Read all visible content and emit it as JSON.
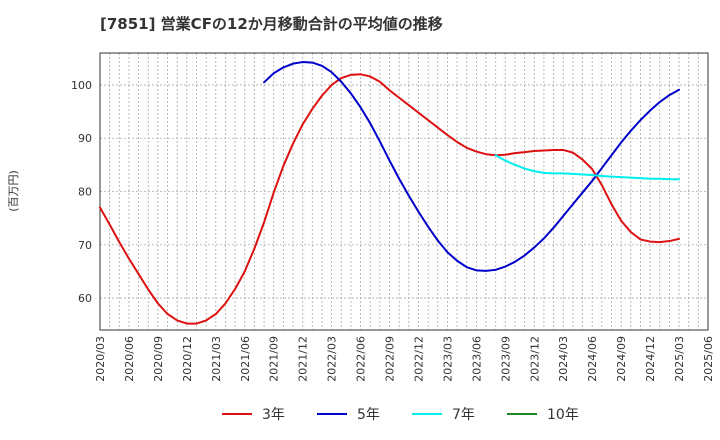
{
  "chart_data": {
    "type": "line",
    "title": "[7851]  営業CFの12か月移動合計の平均値の推移",
    "ylabel": "(百万円)",
    "xlabel": "",
    "ylim": [
      54,
      106
    ],
    "yticks": [
      60,
      70,
      80,
      90,
      100
    ],
    "x_start": "2020-03",
    "x_end": "2025-06",
    "xticks": [
      "2020/03",
      "2020/06",
      "2020/09",
      "2020/12",
      "2021/03",
      "2021/06",
      "2021/09",
      "2021/12",
      "2022/03",
      "2022/06",
      "2022/09",
      "2022/12",
      "2023/03",
      "2023/06",
      "2023/09",
      "2023/12",
      "2024/03",
      "2024/06",
      "2024/09",
      "2024/12",
      "2025/03",
      "2025/06"
    ],
    "grid": true,
    "legend_position": "bottom",
    "series": [
      {
        "name": "3年",
        "color": "#dd1111",
        "points": [
          [
            "2020-03",
            77
          ],
          [
            "2020-04",
            73.8
          ],
          [
            "2020-05",
            70.5
          ],
          [
            "2020-06",
            67.4
          ],
          [
            "2020-07",
            64.5
          ],
          [
            "2020-08",
            61.6
          ],
          [
            "2020-09",
            59
          ],
          [
            "2020-10",
            57
          ],
          [
            "2020-11",
            55.8
          ],
          [
            "2020-12",
            55.2
          ],
          [
            "2021-01",
            55.2
          ],
          [
            "2021-02",
            55.8
          ],
          [
            "2021-03",
            57
          ],
          [
            "2021-04",
            59
          ],
          [
            "2021-05",
            61.7
          ],
          [
            "2021-06",
            65
          ],
          [
            "2021-07",
            69.3
          ],
          [
            "2021-08",
            74.2
          ],
          [
            "2021-09",
            79.8
          ],
          [
            "2021-10",
            84.8
          ],
          [
            "2021-11",
            89
          ],
          [
            "2021-12",
            92.6
          ],
          [
            "2022-01",
            95.5
          ],
          [
            "2022-02",
            98
          ],
          [
            "2022-03",
            100
          ],
          [
            "2022-04",
            101.3
          ],
          [
            "2022-05",
            101.9
          ],
          [
            "2022-06",
            102
          ],
          [
            "2022-07",
            101.6
          ],
          [
            "2022-08",
            100.6
          ],
          [
            "2022-09",
            99
          ],
          [
            "2022-10",
            97.6
          ],
          [
            "2022-11",
            96.2
          ],
          [
            "2022-12",
            94.8
          ],
          [
            "2023-01",
            93.4
          ],
          [
            "2023-02",
            92
          ],
          [
            "2023-03",
            90.6
          ],
          [
            "2023-04",
            89.3
          ],
          [
            "2023-05",
            88.2
          ],
          [
            "2023-06",
            87.5
          ],
          [
            "2023-07",
            87
          ],
          [
            "2023-08",
            86.8
          ],
          [
            "2023-09",
            86.9
          ],
          [
            "2023-10",
            87.2
          ],
          [
            "2023-11",
            87.4
          ],
          [
            "2023-12",
            87.6
          ],
          [
            "2024-01",
            87.7
          ],
          [
            "2024-02",
            87.8
          ],
          [
            "2024-03",
            87.8
          ],
          [
            "2024-04",
            87.3
          ],
          [
            "2024-05",
            86
          ],
          [
            "2024-06",
            84.2
          ],
          [
            "2024-07",
            81.2
          ],
          [
            "2024-08",
            77.6
          ],
          [
            "2024-09",
            74.5
          ],
          [
            "2024-10",
            72.4
          ],
          [
            "2024-11",
            71
          ],
          [
            "2024-12",
            70.6
          ],
          [
            "2025-01",
            70.5
          ],
          [
            "2025-02",
            70.7
          ],
          [
            "2025-03",
            71.1
          ]
        ]
      },
      {
        "name": "5年",
        "color": "#0000cc",
        "points": [
          [
            "2021-08",
            100.5
          ],
          [
            "2021-09",
            102.2
          ],
          [
            "2021-10",
            103.3
          ],
          [
            "2021-11",
            104
          ],
          [
            "2021-12",
            104.3
          ],
          [
            "2022-01",
            104.2
          ],
          [
            "2022-02",
            103.6
          ],
          [
            "2022-03",
            102.4
          ],
          [
            "2022-04",
            100.6
          ],
          [
            "2022-05",
            98.4
          ],
          [
            "2022-06",
            95.8
          ],
          [
            "2022-07",
            92.8
          ],
          [
            "2022-08",
            89.4
          ],
          [
            "2022-09",
            85.8
          ],
          [
            "2022-10",
            82.4
          ],
          [
            "2022-11",
            79.2
          ],
          [
            "2022-12",
            76.2
          ],
          [
            "2023-01",
            73.4
          ],
          [
            "2023-02",
            70.8
          ],
          [
            "2023-03",
            68.6
          ],
          [
            "2023-04",
            67
          ],
          [
            "2023-05",
            65.8
          ],
          [
            "2023-06",
            65.2
          ],
          [
            "2023-07",
            65.1
          ],
          [
            "2023-08",
            65.3
          ],
          [
            "2023-09",
            65.9
          ],
          [
            "2023-10",
            66.8
          ],
          [
            "2023-11",
            68
          ],
          [
            "2023-12",
            69.5
          ],
          [
            "2024-01",
            71.2
          ],
          [
            "2024-02",
            73.2
          ],
          [
            "2024-03",
            75.4
          ],
          [
            "2024-04",
            77.6
          ],
          [
            "2024-05",
            79.8
          ],
          [
            "2024-06",
            82
          ],
          [
            "2024-07",
            84.4
          ],
          [
            "2024-08",
            86.8
          ],
          [
            "2024-09",
            89.2
          ],
          [
            "2024-10",
            91.4
          ],
          [
            "2024-11",
            93.4
          ],
          [
            "2024-12",
            95.2
          ],
          [
            "2025-01",
            96.8
          ],
          [
            "2025-02",
            98.1
          ],
          [
            "2025-03",
            99.1
          ]
        ]
      },
      {
        "name": "7年",
        "color": "#00eeee",
        "points": [
          [
            "2023-08",
            86.8
          ],
          [
            "2023-09",
            85.8
          ],
          [
            "2023-10",
            85
          ],
          [
            "2023-11",
            84.3
          ],
          [
            "2023-12",
            83.8
          ],
          [
            "2024-01",
            83.5
          ],
          [
            "2024-02",
            83.4
          ],
          [
            "2024-03",
            83.4
          ],
          [
            "2024-04",
            83.3
          ],
          [
            "2024-05",
            83.2
          ],
          [
            "2024-06",
            83.1
          ],
          [
            "2024-07",
            82.9
          ],
          [
            "2024-08",
            82.8
          ],
          [
            "2024-09",
            82.7
          ],
          [
            "2024-10",
            82.6
          ],
          [
            "2024-11",
            82.5
          ],
          [
            "2024-12",
            82.4
          ],
          [
            "2025-01",
            82.4
          ],
          [
            "2025-02",
            82.3
          ],
          [
            "2025-03",
            82.3
          ]
        ]
      },
      {
        "name": "10年",
        "color": "#228822",
        "points": []
      }
    ]
  }
}
